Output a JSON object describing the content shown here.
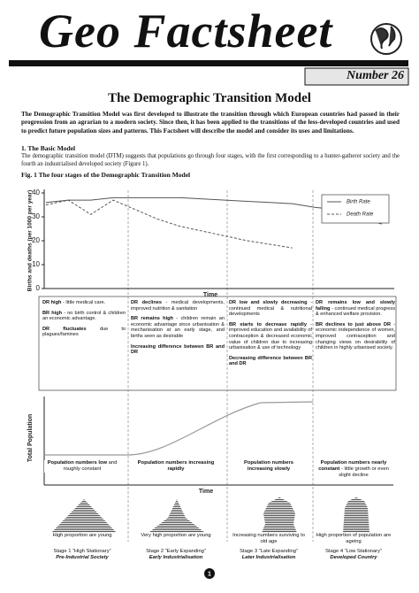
{
  "header": {
    "title": "Geo Factsheet",
    "number": "Number 26"
  },
  "title": "The Demographic Transition Model",
  "intro": "The Demographic Transition Model was first developed to illustrate the transition through which European countries had passed in their progression from an agrarian to a modern society.  Since then, it has been applied to the transitions of the less-developed countries and used to predict future population sizes and patterns.  This Factsheet will describe the model and consider its uses and limitations.",
  "section": {
    "heading": "1. The Basic Model",
    "text": "The demographic transition model (DTM) suggests that populations go through four stages, with the first corresponding to a hunter-gatherer society and the fourth an industrialised developed society (Figure 1)."
  },
  "chart_data": {
    "type": "line",
    "title": "Fig. 1  The four stages of the Demographic Transition Model",
    "y_label": "Births and deaths (per 1000 per year)",
    "x_label": "Time",
    "categories": [
      null,
      null,
      null,
      null,
      null,
      null,
      null,
      null,
      null,
      null,
      null,
      null,
      null,
      null,
      null,
      null
    ],
    "series": [
      {
        "name": "Birth Rate",
        "color": "#555555",
        "dashed": false,
        "values": [
          36,
          37,
          37,
          38,
          38,
          38,
          38,
          37.5,
          37,
          36.5,
          36,
          35.5,
          34,
          33,
          30,
          27
        ]
      },
      {
        "name": "Death Rate",
        "color": "#555555",
        "dashed": true,
        "values": [
          35,
          37,
          31,
          37,
          33,
          29,
          26,
          24,
          22,
          20,
          18.5,
          17,
          null,
          null,
          null,
          null
        ]
      }
    ],
    "ylim": [
      0,
      40
    ],
    "yticks": [
      0,
      10,
      20,
      30,
      40
    ]
  },
  "stages": [
    {
      "points": [
        {
          "head": "DR high",
          "text": "- little medical care."
        },
        {
          "head": "BR high",
          "text": "- no birth control & children an economic advantage."
        },
        {
          "head": "DR fluctuates",
          "text": "due to plagues/famines"
        }
      ],
      "population": {
        "head": "Population numbers low",
        "text": "and roughly constant"
      },
      "pyramid_caption": "High proportion are young",
      "stage": "Stage 1 “High Stationary”",
      "society": "Pre-Industrial Society"
    },
    {
      "points": [
        {
          "head": "DR declines",
          "text": "- medical developments, improved nutrition & sanitation"
        },
        {
          "head": "BR remains high",
          "text": "- children remain an economic advantage since urbanisation & mechanisation at an early stage, and births seen as desirable"
        },
        {
          "head": "Increasing difference between BR and DR"
        }
      ],
      "population": {
        "head": "Population numbers increasing rapidly"
      },
      "pyramid_caption": "Very high proportion are young",
      "stage": "Stage 2 “Early Expanding”",
      "society": "Early Industrialisation"
    },
    {
      "points": [
        {
          "head": "DR low and slowly decreasing",
          "text": "- continued medical & nutritional developments"
        },
        {
          "head": "BR starts to decrease rapidly",
          "text": "- improved education and availability of contraception & decreased economic value of children due to increasing urbanisation & use of technology"
        },
        {
          "head": "Decreasing difference between BR and DR"
        }
      ],
      "population": {
        "head": "Population numbers increasing slowly"
      },
      "pyramid_caption": "Increasing numbers surviving to old age",
      "stage": "Stage 3 “Late Expanding”",
      "society": "Later Industrialisation"
    },
    {
      "points": [
        {
          "head": "DR remains low and slowly falling",
          "text": "- continued medical progress & enhanced welfare provision."
        },
        {
          "head": "BR declines to just above DR",
          "text": "- economic independence of women, improved contraception and changing views on desirability of children in highly urbanised society."
        }
      ],
      "population": {
        "head": "Population numbers nearly constant",
        "text": "- little growth or even slight decline"
      },
      "pyramid_caption": "High proportion of population are ageing",
      "stage": "Stage 4 “Low Stationary”",
      "society": "Developed Country"
    }
  ],
  "population_chart": {
    "y_label": "Total Population",
    "x_label": "Time"
  },
  "page_number": "1"
}
